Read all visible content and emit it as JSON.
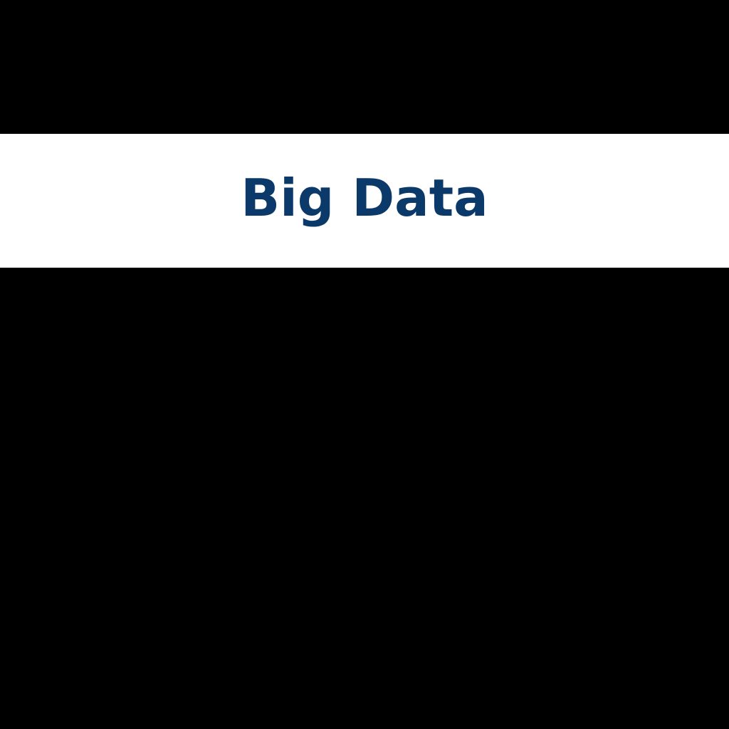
{
  "title": {
    "text": "Big Data",
    "color": "#0b3a6a"
  },
  "colors": {
    "background": "#000000",
    "band": "#ffffff"
  }
}
